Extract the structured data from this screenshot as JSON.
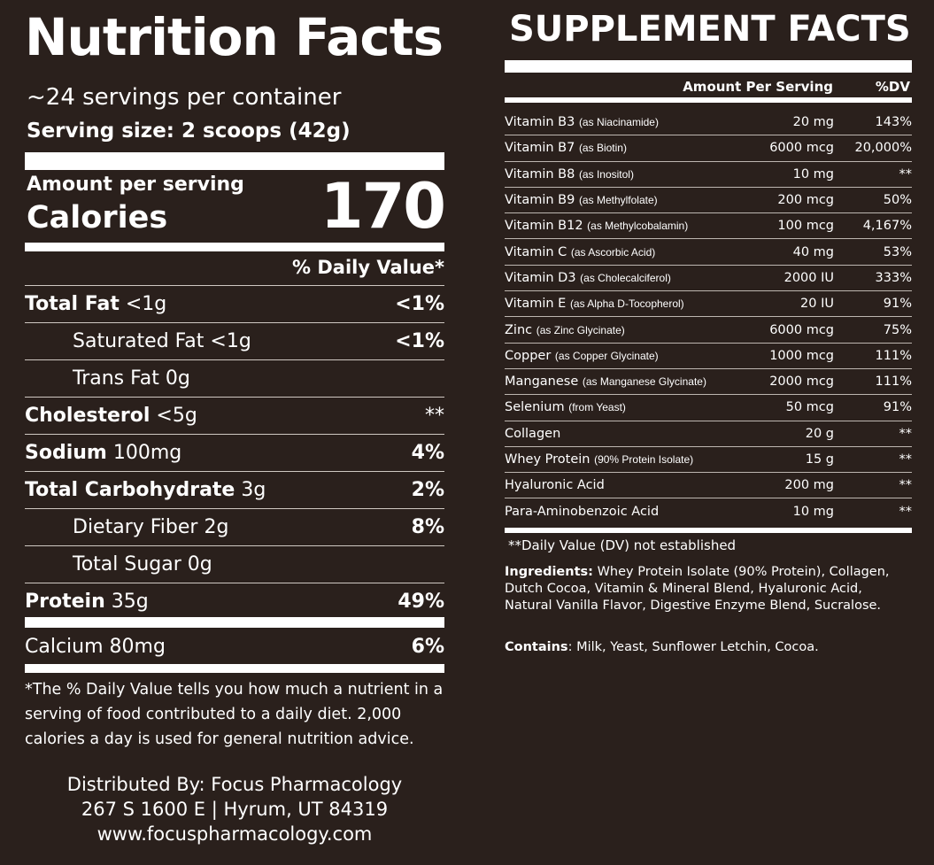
{
  "nutrition": {
    "title": "Nutrition Facts",
    "servings": "~24 servings per container",
    "serving_size": "Serving size: 2 scoops (42g)",
    "amount_per_serving": "Amount per serving",
    "calories_label": "Calories",
    "calories_value": "170",
    "dv_header": "% Daily Value*",
    "rows": [
      {
        "name": "Total Fat",
        "amount": "<1g",
        "dv": "<1%",
        "bold": true,
        "indent": false
      },
      {
        "name": "Saturated Fat",
        "amount": "<1g",
        "dv": "<1%",
        "bold": false,
        "indent": true
      },
      {
        "name": "Trans Fat",
        "amount": "0g",
        "dv": "",
        "bold": false,
        "indent": true
      },
      {
        "name": "Cholesterol",
        "amount": "<5g",
        "dv": "**",
        "bold": true,
        "indent": false
      },
      {
        "name": "Sodium",
        "amount": "100mg",
        "dv": "4%",
        "bold": true,
        "indent": false
      },
      {
        "name": "Total Carbohydrate",
        "amount": "3g",
        "dv": "2%",
        "bold": true,
        "indent": false
      },
      {
        "name": "Dietary Fiber",
        "amount": "2g",
        "dv": "8%",
        "bold": false,
        "indent": true
      },
      {
        "name": "Total Sugar",
        "amount": "0g",
        "dv": "",
        "bold": false,
        "indent": true
      },
      {
        "name": "Protein",
        "amount": "35g",
        "dv": "49%",
        "bold": true,
        "indent": false
      }
    ],
    "calcium": {
      "name": "Calcium",
      "amount": "80mg",
      "dv": "6%"
    },
    "footnote": "*The % Daily Value tells you how much a nutrient in a serving of food contributed to a daily diet. 2,000 calories a day is used for general nutrition advice.",
    "distributor": [
      "Distributed By: Focus Pharmacology",
      "267 S 1600 E | Hyrum, UT 84319",
      "www.focuspharmacology.com"
    ]
  },
  "supplement": {
    "title": "SUPPLEMENT FACTS",
    "amount_header": "Amount Per Serving",
    "dv_header": "%DV",
    "rows": [
      {
        "name": "Vitamin B3",
        "detail": "(as Niacinamide)",
        "amount": "20 mg",
        "dv": "143%"
      },
      {
        "name": "Vitamin B7",
        "detail": "(as Biotin)",
        "amount": "6000 mcg",
        "dv": "20,000%"
      },
      {
        "name": "Vitamin B8",
        "detail": "(as Inositol)",
        "amount": "10 mg",
        "dv": "**"
      },
      {
        "name": "Vitamin B9",
        "detail": "(as Methylfolate)",
        "amount": "200 mcg",
        "dv": "50%"
      },
      {
        "name": "Vitamin B12",
        "detail": "(as Methylcobalamin)",
        "amount": "100 mcg",
        "dv": "4,167%"
      },
      {
        "name": "Vitamin C",
        "detail": "(as Ascorbic Acid)",
        "amount": "40 mg",
        "dv": "53%"
      },
      {
        "name": "Vitamin D3",
        "detail": "(as Cholecalciferol)",
        "amount": "2000 IU",
        "dv": "333%"
      },
      {
        "name": "Vitamin E",
        "detail": "(as Alpha D-Tocopherol)",
        "amount": "20 IU",
        "dv": "91%"
      },
      {
        "name": "Zinc",
        "detail": "(as Zinc Glycinate)",
        "amount": "6000 mcg",
        "dv": "75%"
      },
      {
        "name": "Copper",
        "detail": "(as Copper Glycinate)",
        "amount": "1000 mcg",
        "dv": "111%"
      },
      {
        "name": "Manganese",
        "detail": "(as Manganese Glycinate)",
        "amount": "2000 mcg",
        "dv": "111%"
      },
      {
        "name": "Selenium",
        "detail": "(from Yeast)",
        "amount": "50 mcg",
        "dv": "91%"
      },
      {
        "name": "Collagen",
        "detail": "",
        "amount": "20 g",
        "dv": "**"
      },
      {
        "name": "Whey Protein",
        "detail": "(90% Protein Isolate)",
        "amount": "15 g",
        "dv": "**"
      },
      {
        "name": "Hyaluronic Acid",
        "detail": "",
        "amount": "200 mg",
        "dv": "**"
      },
      {
        "name": "Para-Aminobenzoic Acid",
        "detail": "",
        "amount": "10 mg",
        "dv": "**"
      }
    ],
    "note": "**Daily Value (DV) not established",
    "ingredients_label": "Ingredients:",
    "ingredients": "Whey Protein Isolate (90% Protein), Collagen, Dutch Cocoa, Vitamin & Mineral Blend, Hyaluronic Acid, Natural Vanilla Flavor, Digestive Enzyme Blend, Sucralose.",
    "contains_label": "Contains",
    "contains": ": Milk, Yeast, Sunflower Letchin, Cocoa."
  },
  "colors": {
    "background": "#2a201c",
    "text": "#ffffff"
  }
}
